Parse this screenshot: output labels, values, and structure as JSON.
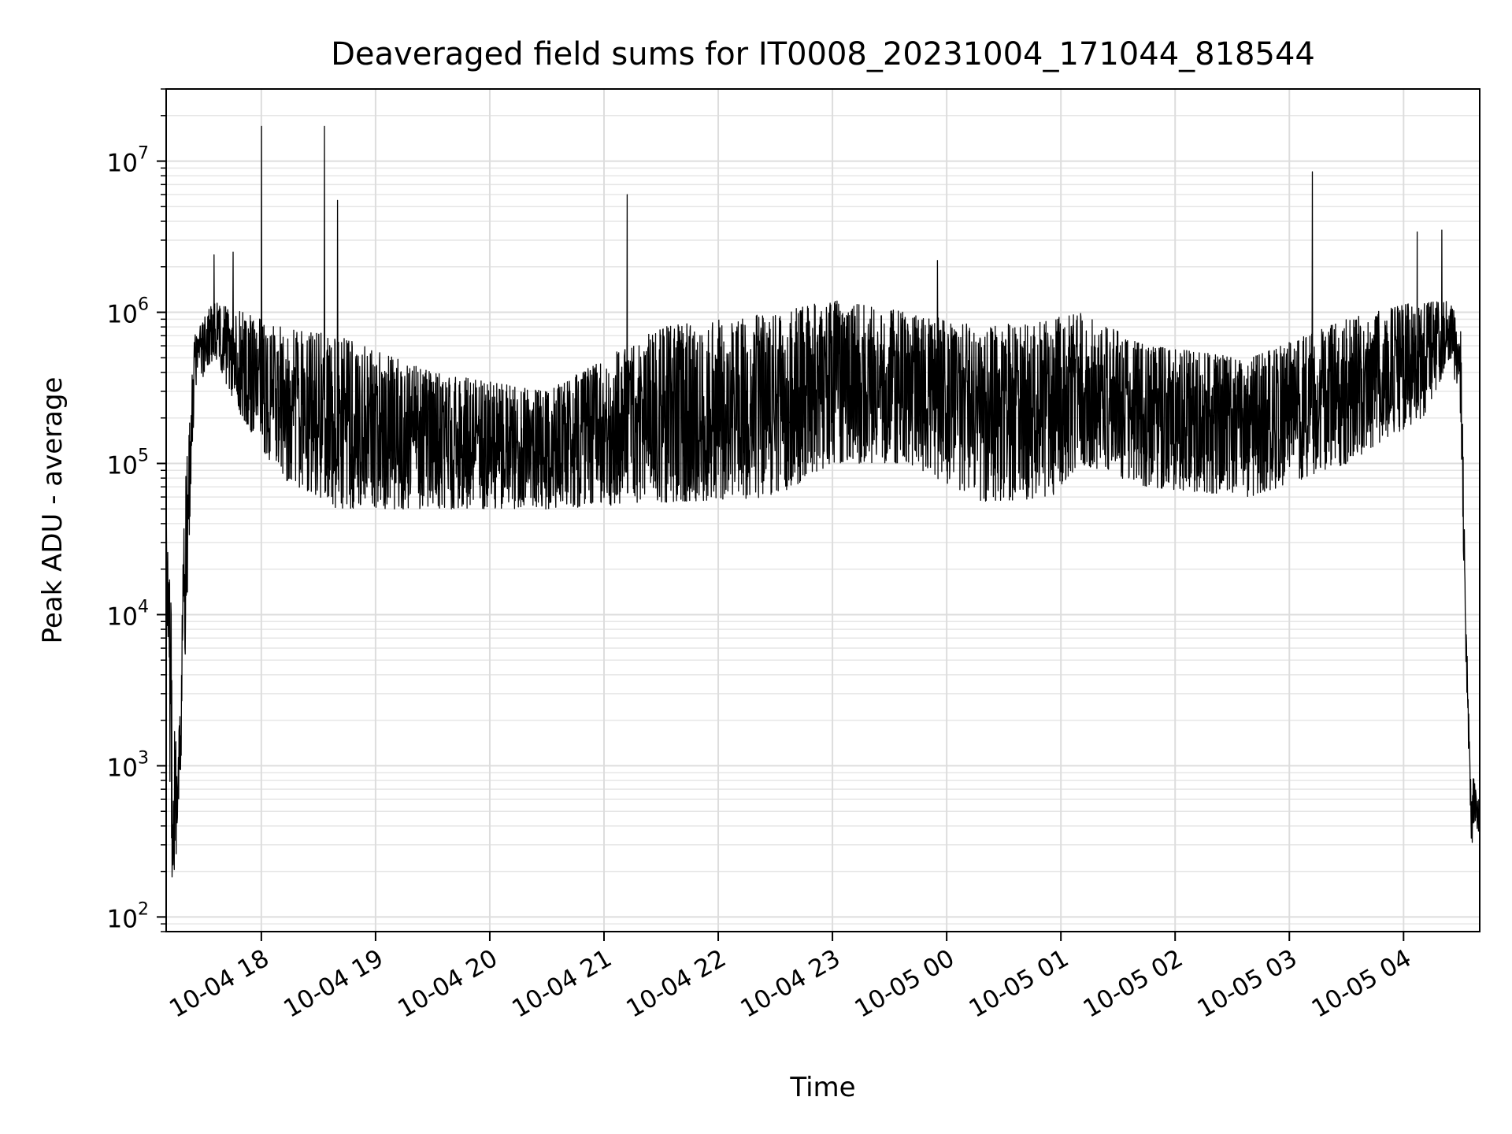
{
  "chart_data": {
    "type": "line",
    "title": "Deaveraged field sums for IT0008_20231004_171044_818544",
    "xlabel": "Time",
    "ylabel": "Peak ADU - average",
    "yscale": "log",
    "ylim": [
      80,
      30000000
    ],
    "xlim": [
      "2023-10-04 17:10",
      "2023-10-05 04:40"
    ],
    "grid": "major and minor",
    "line_color": "#000000",
    "x_ticks": [
      "2023-10-04 18:00",
      "2023-10-04 19:00",
      "2023-10-04 20:00",
      "2023-10-04 21:00",
      "2023-10-04 22:00",
      "2023-10-04 23:00",
      "2023-10-05 00:00",
      "2023-10-05 01:00",
      "2023-10-05 02:00",
      "2023-10-05 03:00",
      "2023-10-05 04:00"
    ],
    "x_tick_labels": [
      "10-04 18",
      "10-04 19",
      "10-04 20",
      "10-04 21",
      "10-04 22",
      "10-04 23",
      "10-05 00",
      "10-05 01",
      "10-05 02",
      "10-05 03",
      "10-05 04"
    ],
    "y_ticks": [
      100,
      1000,
      10000,
      100000,
      1000000,
      10000000
    ],
    "y_tick_labels": [
      {
        "base": "10",
        "exp": "2"
      },
      {
        "base": "10",
        "exp": "3"
      },
      {
        "base": "10",
        "exp": "4"
      },
      {
        "base": "10",
        "exp": "5"
      },
      {
        "base": "10",
        "exp": "6"
      },
      {
        "base": "10",
        "exp": "7"
      }
    ],
    "trend": [
      {
        "t": "2023-10-04 17:10",
        "lo": 20000,
        "hi": 70000
      },
      {
        "t": "2023-10-04 17:13",
        "lo": 140,
        "hi": 10000
      },
      {
        "t": "2023-10-04 17:16",
        "lo": 300,
        "hi": 700
      },
      {
        "t": "2023-10-04 17:20",
        "lo": 5000,
        "hi": 100000
      },
      {
        "t": "2023-10-04 17:25",
        "lo": 300000,
        "hi": 700000
      },
      {
        "t": "2023-10-04 17:35",
        "lo": 500000,
        "hi": 1200000
      },
      {
        "t": "2023-10-04 17:50",
        "lo": 200000,
        "hi": 1000000
      },
      {
        "t": "2023-10-04 18:10",
        "lo": 80000,
        "hi": 800000
      },
      {
        "t": "2023-10-04 18:40",
        "lo": 50000,
        "hi": 700000
      },
      {
        "t": "2023-10-04 19:30",
        "lo": 50000,
        "hi": 400000
      },
      {
        "t": "2023-10-04 20:30",
        "lo": 50000,
        "hi": 300000
      },
      {
        "t": "2023-10-04 21:30",
        "lo": 55000,
        "hi": 800000
      },
      {
        "t": "2023-10-04 22:30",
        "lo": 60000,
        "hi": 1000000
      },
      {
        "t": "2023-10-04 23:00",
        "lo": 100000,
        "hi": 1200000
      },
      {
        "t": "2023-10-04 23:40",
        "lo": 100000,
        "hi": 1000000
      },
      {
        "t": "2023-10-05 00:20",
        "lo": 55000,
        "hi": 800000
      },
      {
        "t": "2023-10-05 00:55",
        "lo": 60000,
        "hi": 900000
      },
      {
        "t": "2023-10-05 01:10",
        "lo": 100000,
        "hi": 1000000
      },
      {
        "t": "2023-10-05 01:45",
        "lo": 70000,
        "hi": 600000
      },
      {
        "t": "2023-10-05 02:40",
        "lo": 60000,
        "hi": 500000
      },
      {
        "t": "2023-10-05 03:30",
        "lo": 100000,
        "hi": 900000
      },
      {
        "t": "2023-10-05 04:10",
        "lo": 200000,
        "hi": 1200000
      },
      {
        "t": "2023-10-05 04:25",
        "lo": 500000,
        "hi": 1200000
      },
      {
        "t": "2023-10-05 04:30",
        "lo": 200000,
        "hi": 800000
      },
      {
        "t": "2023-10-05 04:33",
        "lo": 3000,
        "hi": 10000
      },
      {
        "t": "2023-10-05 04:35",
        "lo": 300,
        "hi": 900
      },
      {
        "t": "2023-10-05 04:40",
        "lo": 350,
        "hi": 700
      }
    ],
    "spikes": [
      {
        "t": "2023-10-04 17:35",
        "value": 2400000
      },
      {
        "t": "2023-10-04 17:45",
        "value": 2500000
      },
      {
        "t": "2023-10-04 18:00",
        "value": 17000000
      },
      {
        "t": "2023-10-04 18:33",
        "value": 17000000
      },
      {
        "t": "2023-10-04 18:40",
        "value": 5500000
      },
      {
        "t": "2023-10-04 21:12",
        "value": 6000000
      },
      {
        "t": "2023-10-04 23:55",
        "value": 2200000
      },
      {
        "t": "2023-10-05 03:12",
        "value": 8500000
      },
      {
        "t": "2023-10-05 04:07",
        "value": 3400000
      },
      {
        "t": "2023-10-05 04:20",
        "value": 3500000
      }
    ]
  }
}
